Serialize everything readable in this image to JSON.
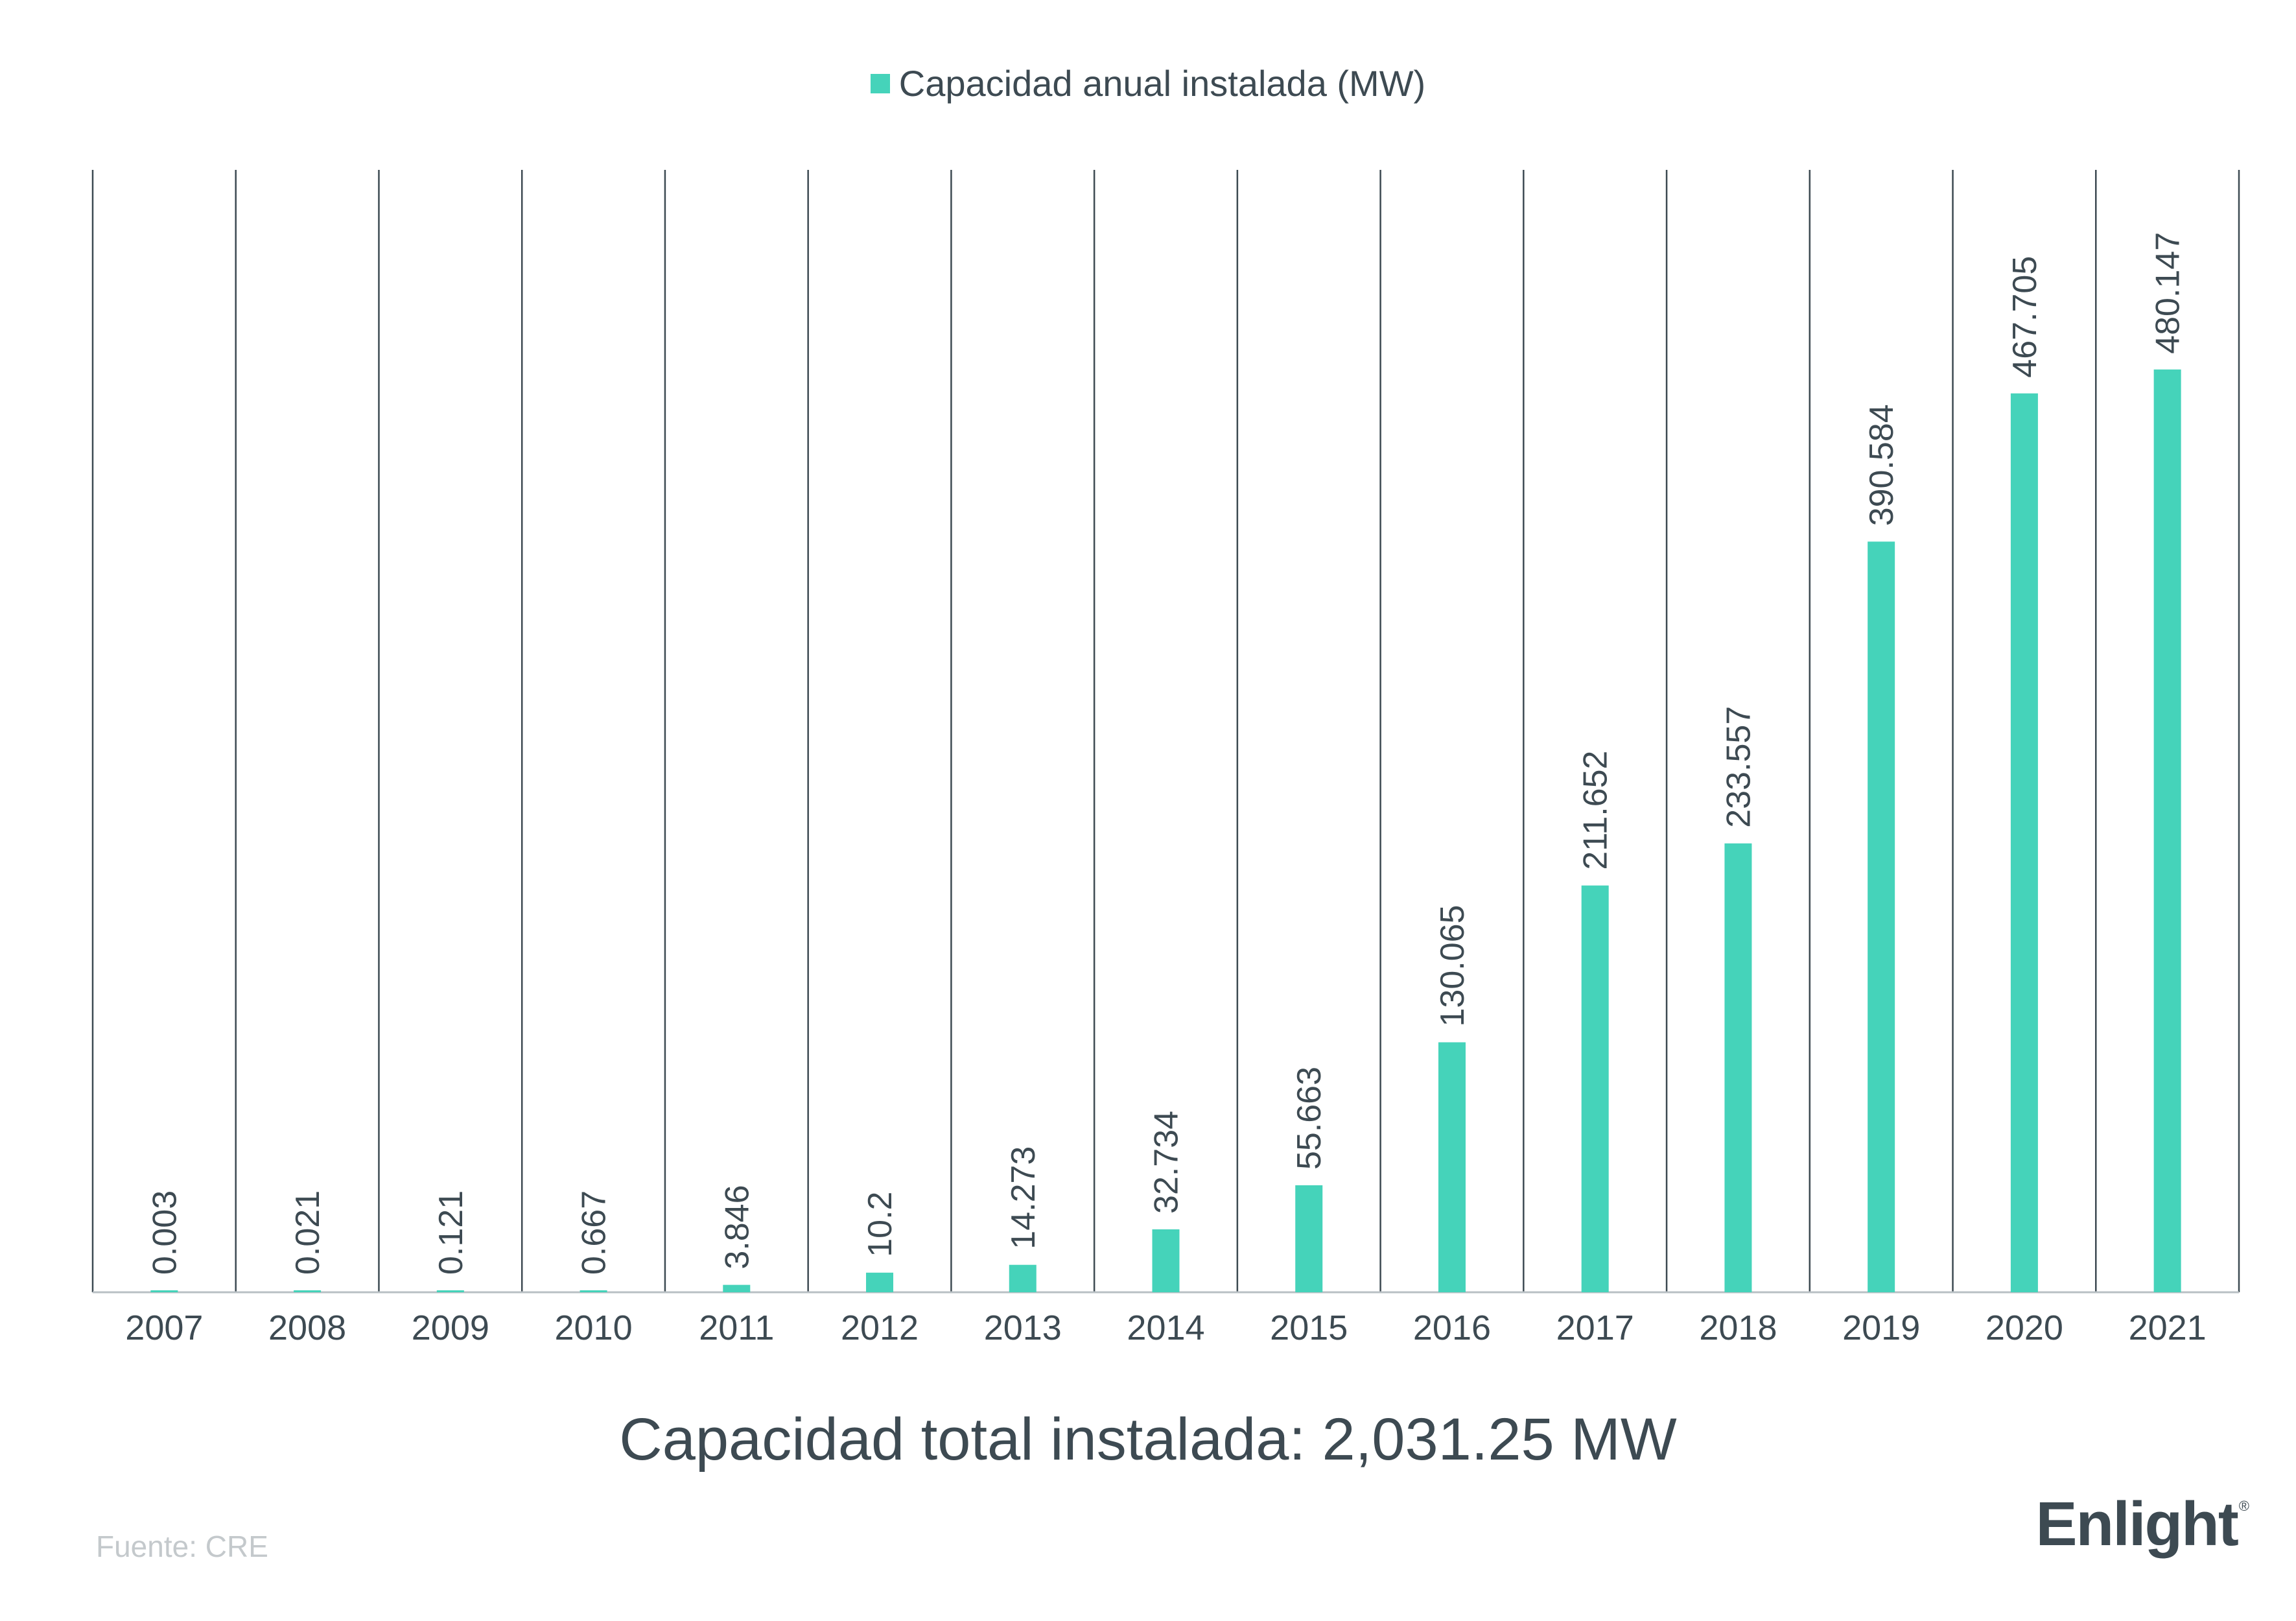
{
  "chart_data": {
    "type": "bar",
    "categories": [
      "2007",
      "2008",
      "2009",
      "2010",
      "2011",
      "2012",
      "2013",
      "2014",
      "2015",
      "2016",
      "2017",
      "2018",
      "2019",
      "2020",
      "2021"
    ],
    "series": [
      {
        "name": "Capacidad anual instalada (MW)",
        "values": [
          0.003,
          0.021,
          0.121,
          0.667,
          3.846,
          10.2,
          14.273,
          32.734,
          55.663,
          130.065,
          211.652,
          233.557,
          390.584,
          467.705,
          480.147
        ],
        "labels": [
          "0.003",
          "0.021",
          "0.121",
          "0.667",
          "3.846",
          "10.2",
          "14.273",
          "32.734",
          "55.663",
          "130.065",
          "211.652",
          "233.557",
          "390.584",
          "467.705",
          "480.147"
        ]
      }
    ],
    "ylim": [
      0,
      584
    ],
    "grid": "vertical separators between categories",
    "legend_placement": "top-center",
    "bar_color": "#45d3ba",
    "gridline_color": "#3d4a52",
    "text_color": "#3d4a52"
  },
  "footer": {
    "total": "Capacidad total instalada: 2,031.25 MW",
    "source": "Fuente: CRE",
    "brand": "Enlight",
    "brand_mark": "®"
  }
}
